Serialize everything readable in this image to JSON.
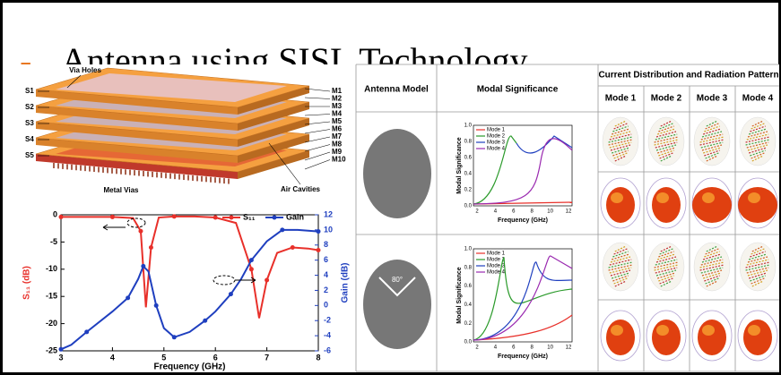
{
  "slide": {
    "title": "Antenna using SISL Technology"
  },
  "stack_diagram": {
    "left_labels": [
      "S1",
      "S2",
      "S3",
      "S4",
      "S5"
    ],
    "right_labels": [
      "M1",
      "M2",
      "M3",
      "M4",
      "M5",
      "M6",
      "M7",
      "M8",
      "M9",
      "M10"
    ],
    "callouts": [
      "Via Holes",
      "Metal Vias",
      "Air Cavities"
    ]
  },
  "chart_data": {
    "type": "line",
    "x_label": "Frequency (GHz)",
    "y_label": "S₁₁ (dB)",
    "y2_label": "Gain (dB)",
    "xlim": [
      3,
      8
    ],
    "xticks": [
      3,
      4,
      5,
      6,
      7,
      8
    ],
    "ylim": [
      -25,
      0
    ],
    "yticks": [
      0,
      -5,
      -10,
      -15,
      -20,
      -25
    ],
    "y2lim": [
      -6,
      12
    ],
    "y2ticks": [
      12,
      10,
      8,
      6,
      4,
      2,
      0,
      -2,
      -4,
      -6
    ],
    "series": [
      {
        "name": "S₁₁",
        "color": "#e8302a",
        "axis": "y",
        "x": [
          3,
          3.5,
          4,
          4.4,
          4.55,
          4.65,
          4.75,
          4.9,
          5.2,
          5.6,
          6,
          6.4,
          6.7,
          6.85,
          7,
          7.2,
          7.5,
          7.8,
          8
        ],
        "values": [
          -0.4,
          -0.4,
          -0.4,
          -0.6,
          -3,
          -17,
          -6,
          -0.5,
          -0.3,
          -0.3,
          -0.5,
          -1.5,
          -10,
          -19,
          -12,
          -7,
          -6,
          -6.2,
          -6.5
        ]
      },
      {
        "name": "Gain",
        "color": "#1f3fbf",
        "axis": "y2",
        "x": [
          3,
          3.2,
          3.5,
          4,
          4.3,
          4.5,
          4.6,
          4.7,
          4.85,
          5,
          5.2,
          5.5,
          5.8,
          6,
          6.3,
          6.5,
          6.7,
          7,
          7.3,
          7.6,
          8
        ],
        "values": [
          -5.8,
          -5.2,
          -3.5,
          -0.8,
          1,
          3.5,
          5.2,
          4.5,
          0,
          -3,
          -4.2,
          -3.5,
          -2,
          -0.8,
          1.5,
          3.5,
          6,
          8.5,
          10,
          10,
          9.8
        ]
      }
    ]
  },
  "table": {
    "columns": [
      "Antenna Model",
      "Modal Significance"
    ],
    "group_title": "Current Distribution and Radiation Pattern",
    "modes": [
      "Mode 1",
      "Mode 2",
      "Mode 3",
      "Mode 4"
    ],
    "angle_label": "80°",
    "modal_plot": {
      "legend": [
        "Mode 1",
        "Mode 2",
        "Mode 3",
        "Mode 4"
      ],
      "y_label": "Modal Significance",
      "x_label": "Frequency (GHz)",
      "yticks": [
        "0.0",
        "0.2",
        "0.4",
        "0.6",
        "0.8",
        "1.0"
      ],
      "xticks": [
        "2",
        "4",
        "6",
        "8",
        "10",
        "12"
      ]
    }
  }
}
